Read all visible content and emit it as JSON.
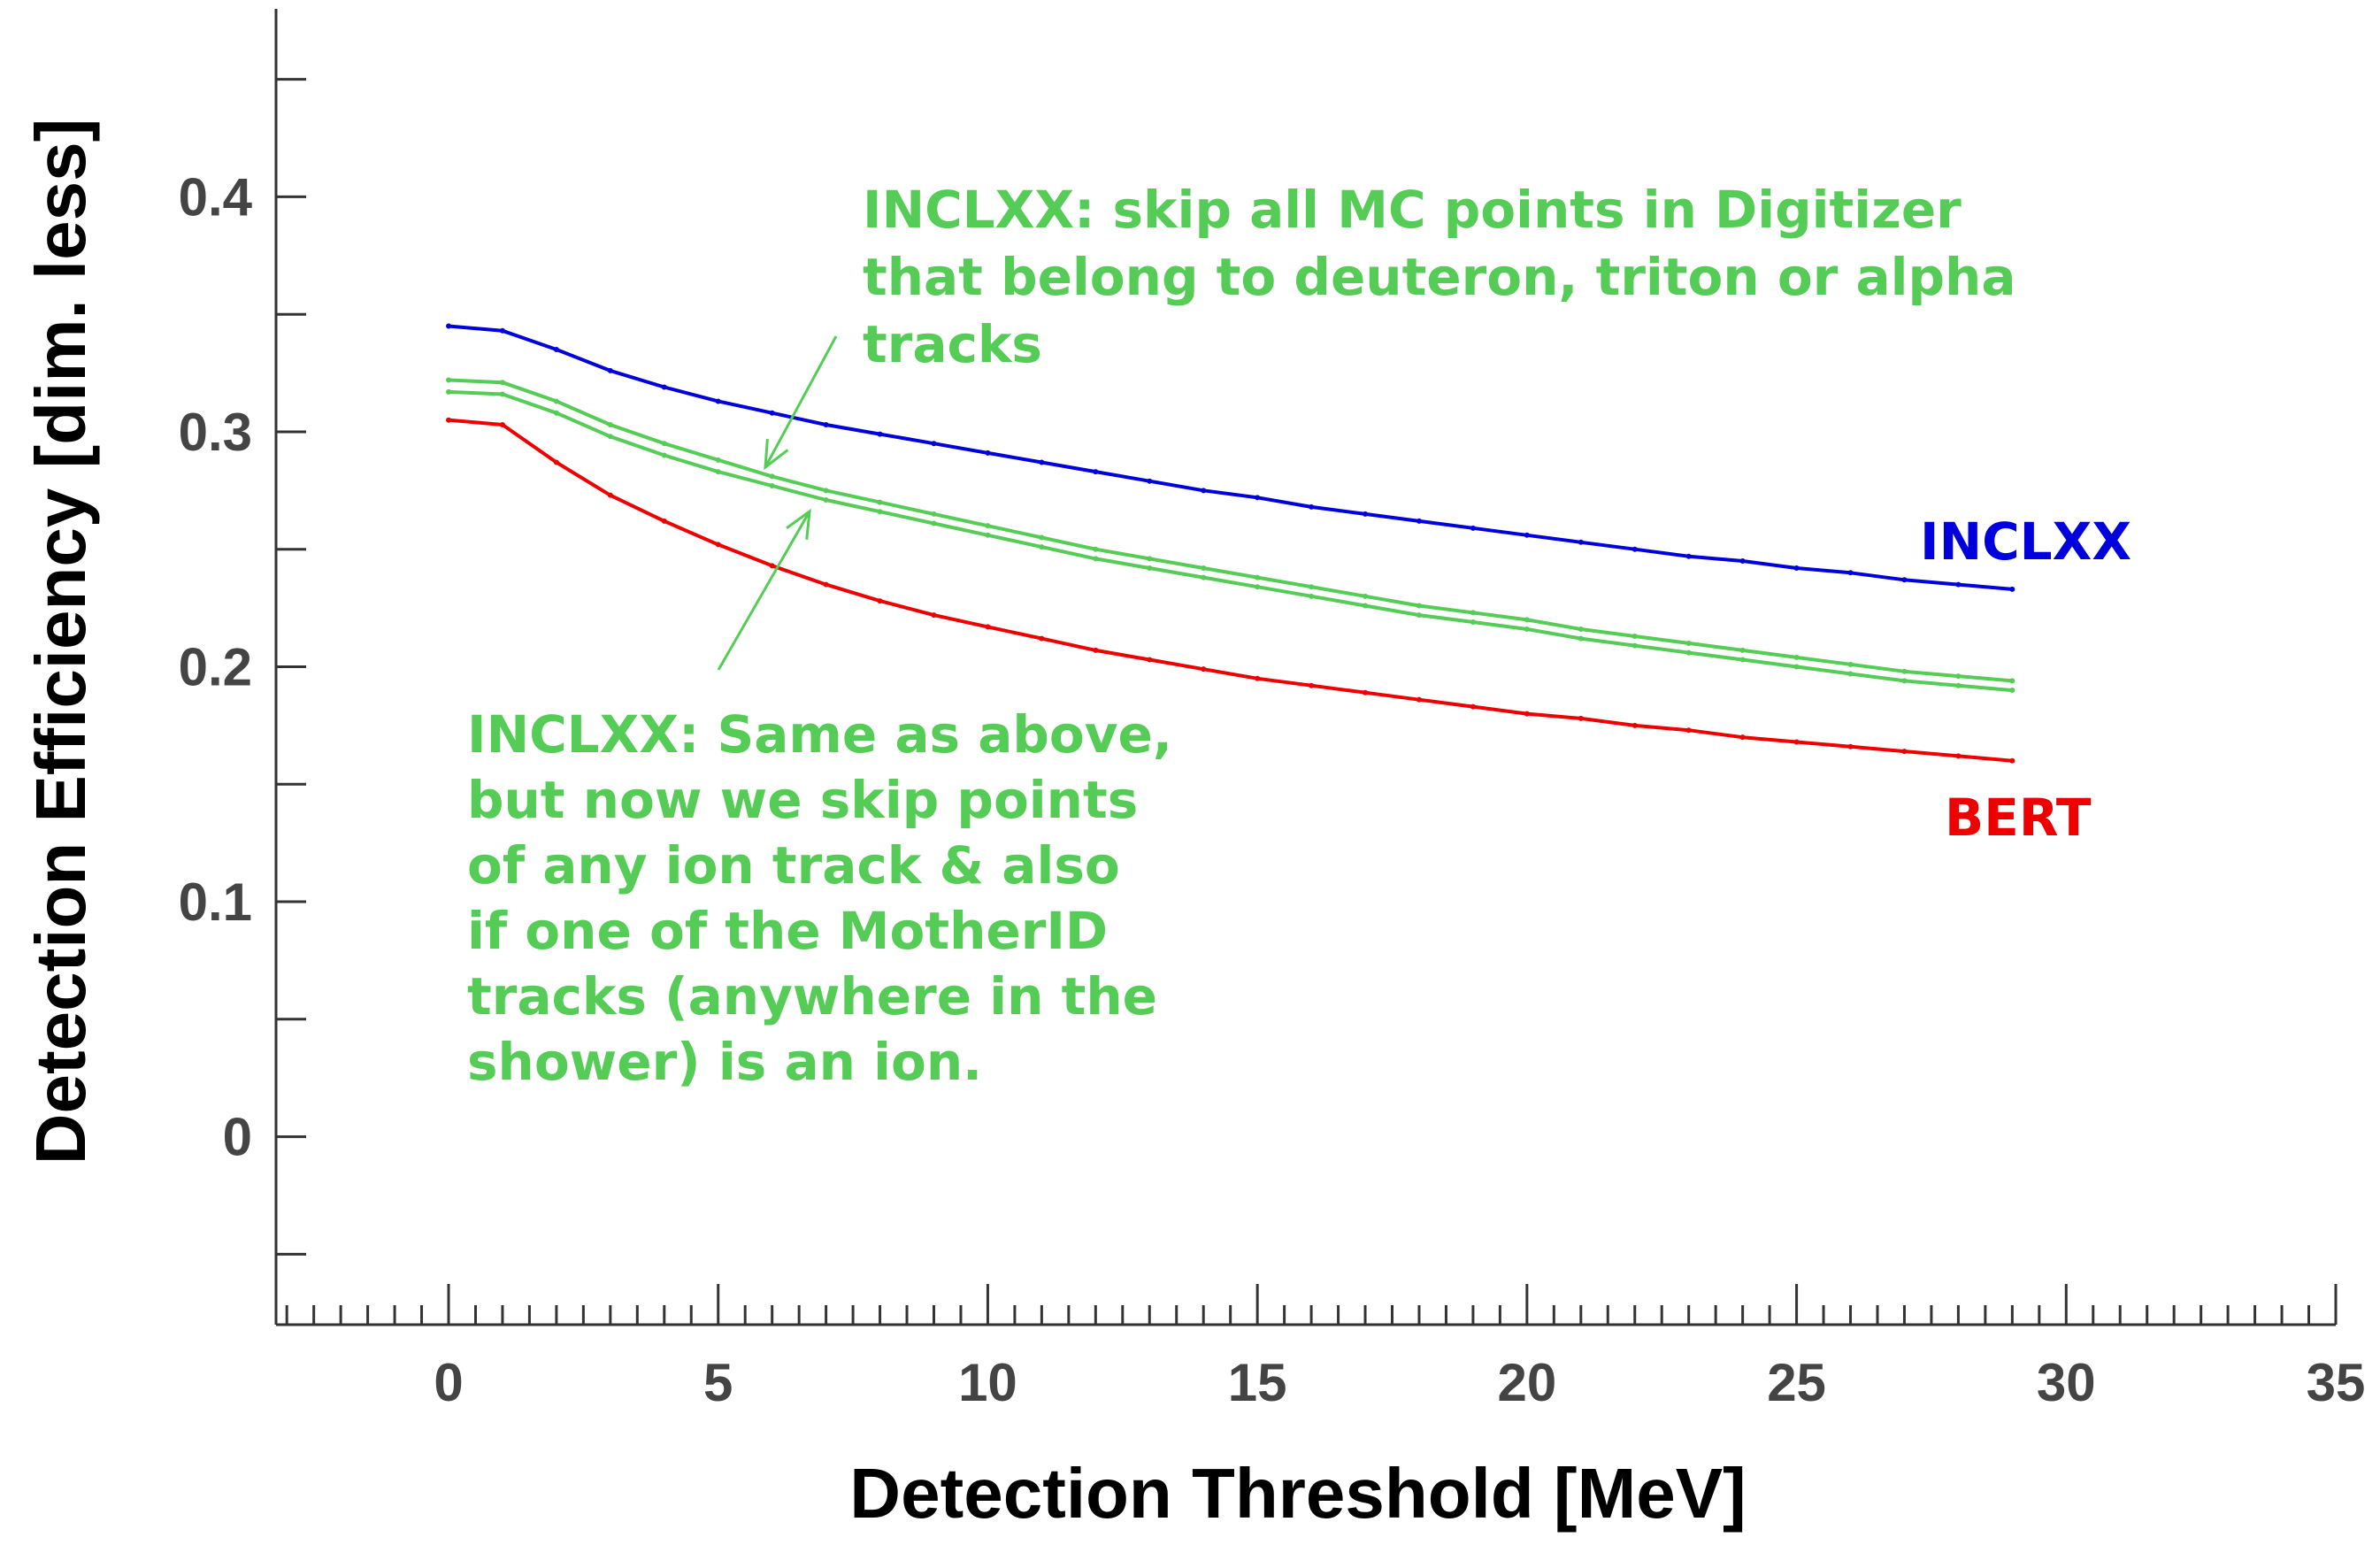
{
  "chart_data": {
    "type": "line",
    "xlabel": "Detection Threshold [MeV]",
    "ylabel": "Detection Efficiency [dim. less]",
    "xlim": [
      -3.2,
      35
    ],
    "ylim": [
      -0.08,
      0.48
    ],
    "x_ticks": [
      0,
      5,
      10,
      15,
      20,
      25,
      30,
      35
    ],
    "y_ticks": [
      0,
      0.1,
      0.2,
      0.3,
      0.4
    ],
    "x_tick_labels": [
      "0",
      "5",
      "10",
      "15",
      "20",
      "25",
      "30",
      "35"
    ],
    "y_tick_labels": [
      "0",
      "0.1",
      "0.2",
      "0.3",
      "0.4"
    ],
    "grid": false,
    "legend": "none",
    "x": [
      0,
      1,
      2,
      3,
      4,
      5,
      6,
      7,
      8,
      9,
      10,
      11,
      12,
      13,
      14,
      15,
      16,
      17,
      18,
      19,
      20,
      21,
      22,
      23,
      24,
      25,
      26,
      27,
      28,
      29
    ],
    "series": [
      {
        "name": "INCLXX",
        "color": "#0000dd",
        "values": [
          0.345,
          0.343,
          0.335,
          0.326,
          0.319,
          0.313,
          0.308,
          0.303,
          0.299,
          0.295,
          0.291,
          0.287,
          0.283,
          0.279,
          0.275,
          0.272,
          0.268,
          0.265,
          0.262,
          0.259,
          0.256,
          0.253,
          0.25,
          0.247,
          0.245,
          0.242,
          0.24,
          0.237,
          0.235,
          0.233
        ]
      },
      {
        "name": "",
        "color": "#55cc55",
        "values": [
          0.322,
          0.321,
          0.313,
          0.303,
          0.295,
          0.288,
          0.281,
          0.275,
          0.27,
          0.265,
          0.26,
          0.255,
          0.25,
          0.246,
          0.242,
          0.238,
          0.234,
          0.23,
          0.226,
          0.223,
          0.22,
          0.216,
          0.213,
          0.21,
          0.207,
          0.204,
          0.201,
          0.198,
          0.196,
          0.194
        ]
      },
      {
        "name": "",
        "color": "#55cc55",
        "values": [
          0.317,
          0.316,
          0.308,
          0.298,
          0.29,
          0.283,
          0.277,
          0.271,
          0.266,
          0.261,
          0.256,
          0.251,
          0.246,
          0.242,
          0.238,
          0.234,
          0.23,
          0.226,
          0.222,
          0.219,
          0.216,
          0.212,
          0.209,
          0.206,
          0.203,
          0.2,
          0.197,
          0.194,
          0.192,
          0.19
        ]
      },
      {
        "name": "BERT",
        "color": "#ee0000",
        "values": [
          0.305,
          0.303,
          0.287,
          0.273,
          0.262,
          0.252,
          0.243,
          0.235,
          0.228,
          0.222,
          0.217,
          0.212,
          0.207,
          0.203,
          0.199,
          0.195,
          0.192,
          0.189,
          0.186,
          0.183,
          0.18,
          0.178,
          0.175,
          0.173,
          0.17,
          0.168,
          0.166,
          0.164,
          0.162,
          0.16
        ]
      }
    ],
    "labels": {
      "inclxx": "INCLXX",
      "bert": "BERT"
    },
    "annotations": [
      {
        "color": "#55cc55",
        "lines": [
          "INCLXX: skip all MC points in Digitizer",
          "that belong to deuteron, triton or alpha",
          "tracks"
        ]
      },
      {
        "color": "#55cc55",
        "lines": [
          "INCLXX: Same as above,",
          "but now we skip points",
          "of any ion track & also",
          "if one of the MotherID",
          "tracks (anywhere in the",
          "shower) is an ion."
        ]
      }
    ]
  }
}
